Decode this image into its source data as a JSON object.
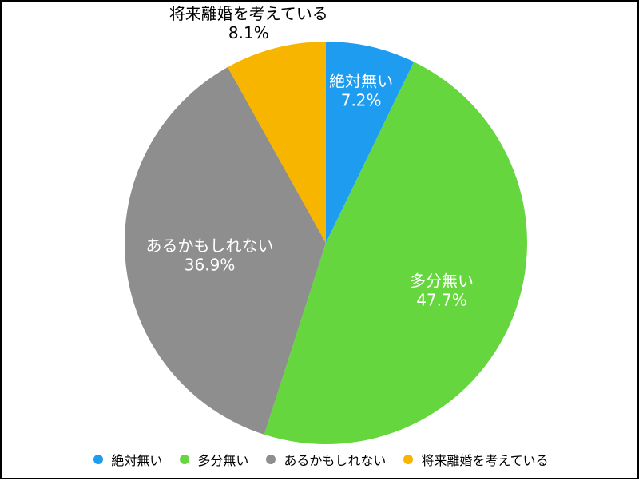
{
  "chart_data": {
    "type": "pie",
    "title": "",
    "start_angle_deg": 0,
    "direction": "clockwise",
    "slices": [
      {
        "label": "絶対無い",
        "value": 7.2,
        "value_text": "7.2%",
        "color": "#1e9cf0",
        "label_color": "#ffffff"
      },
      {
        "label": "多分無い",
        "value": 47.7,
        "value_text": "47.7%",
        "color": "#66d63e",
        "label_color": "#ffffff"
      },
      {
        "label": "あるかもしれない",
        "value": 36.9,
        "value_text": "36.9%",
        "color": "#8e8e8e",
        "label_color": "#ffffff"
      },
      {
        "label": "将来離婚を考えている",
        "value": 8.1,
        "value_text": "8.1%",
        "color": "#f7b500",
        "label_color": "#000000"
      }
    ],
    "legend": {
      "placement": "bottom",
      "entries": [
        "絶対無い",
        "多分無い",
        "あるかもしれない",
        "将来離婚を考えている"
      ]
    }
  }
}
